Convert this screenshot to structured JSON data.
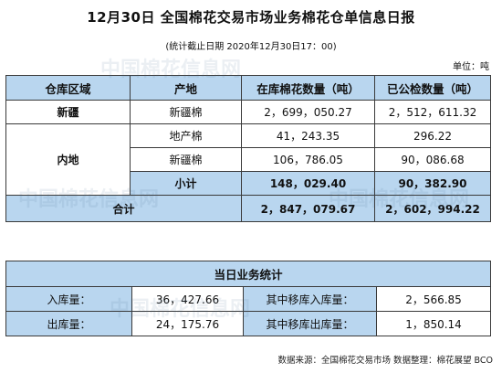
{
  "header": {
    "title": "12月30日 全国棉花交易市场业务棉花仓单信息日报",
    "subtitle": "(统计截止日期 2020年12月30日17：00)",
    "unit": "单位：吨"
  },
  "inventory": {
    "columns": [
      "仓库区域",
      "产地",
      "在库棉花数量（吨）",
      "已公检数量（吨）"
    ],
    "xinjiang": {
      "region": "新疆",
      "origin": "新疆棉",
      "in_stock": "2，699，050.27",
      "inspected": "2，512，611.32"
    },
    "inland": {
      "region": "内地",
      "rows": [
        {
          "origin": "地产棉",
          "in_stock": "41，243.35",
          "inspected": "296.22"
        },
        {
          "origin": "新疆棉",
          "in_stock": "106，786.05",
          "inspected": "90，086.68"
        }
      ],
      "subtotal_label": "小计",
      "subtotal_in_stock": "148，029.40",
      "subtotal_inspected": "90，382.90"
    },
    "total": {
      "label": "合计",
      "in_stock": "2，847，079.67",
      "inspected": "2，602，994.22"
    }
  },
  "daily": {
    "title": "当日业务统计",
    "rows": [
      {
        "label1": "入库量：",
        "value1": "36，427.66",
        "label2": "其中移库入库量：",
        "value2": "2，566.85"
      },
      {
        "label1": "出库量：",
        "value1": "24，175.76",
        "label2": "其中移库出库量：",
        "value2": "1，850.14"
      }
    ]
  },
  "footer": {
    "source": "数据来源：全国棉花交易市场   数据整理：棉花展望   BCO"
  },
  "watermark": {
    "text": "中国棉花信息网"
  }
}
